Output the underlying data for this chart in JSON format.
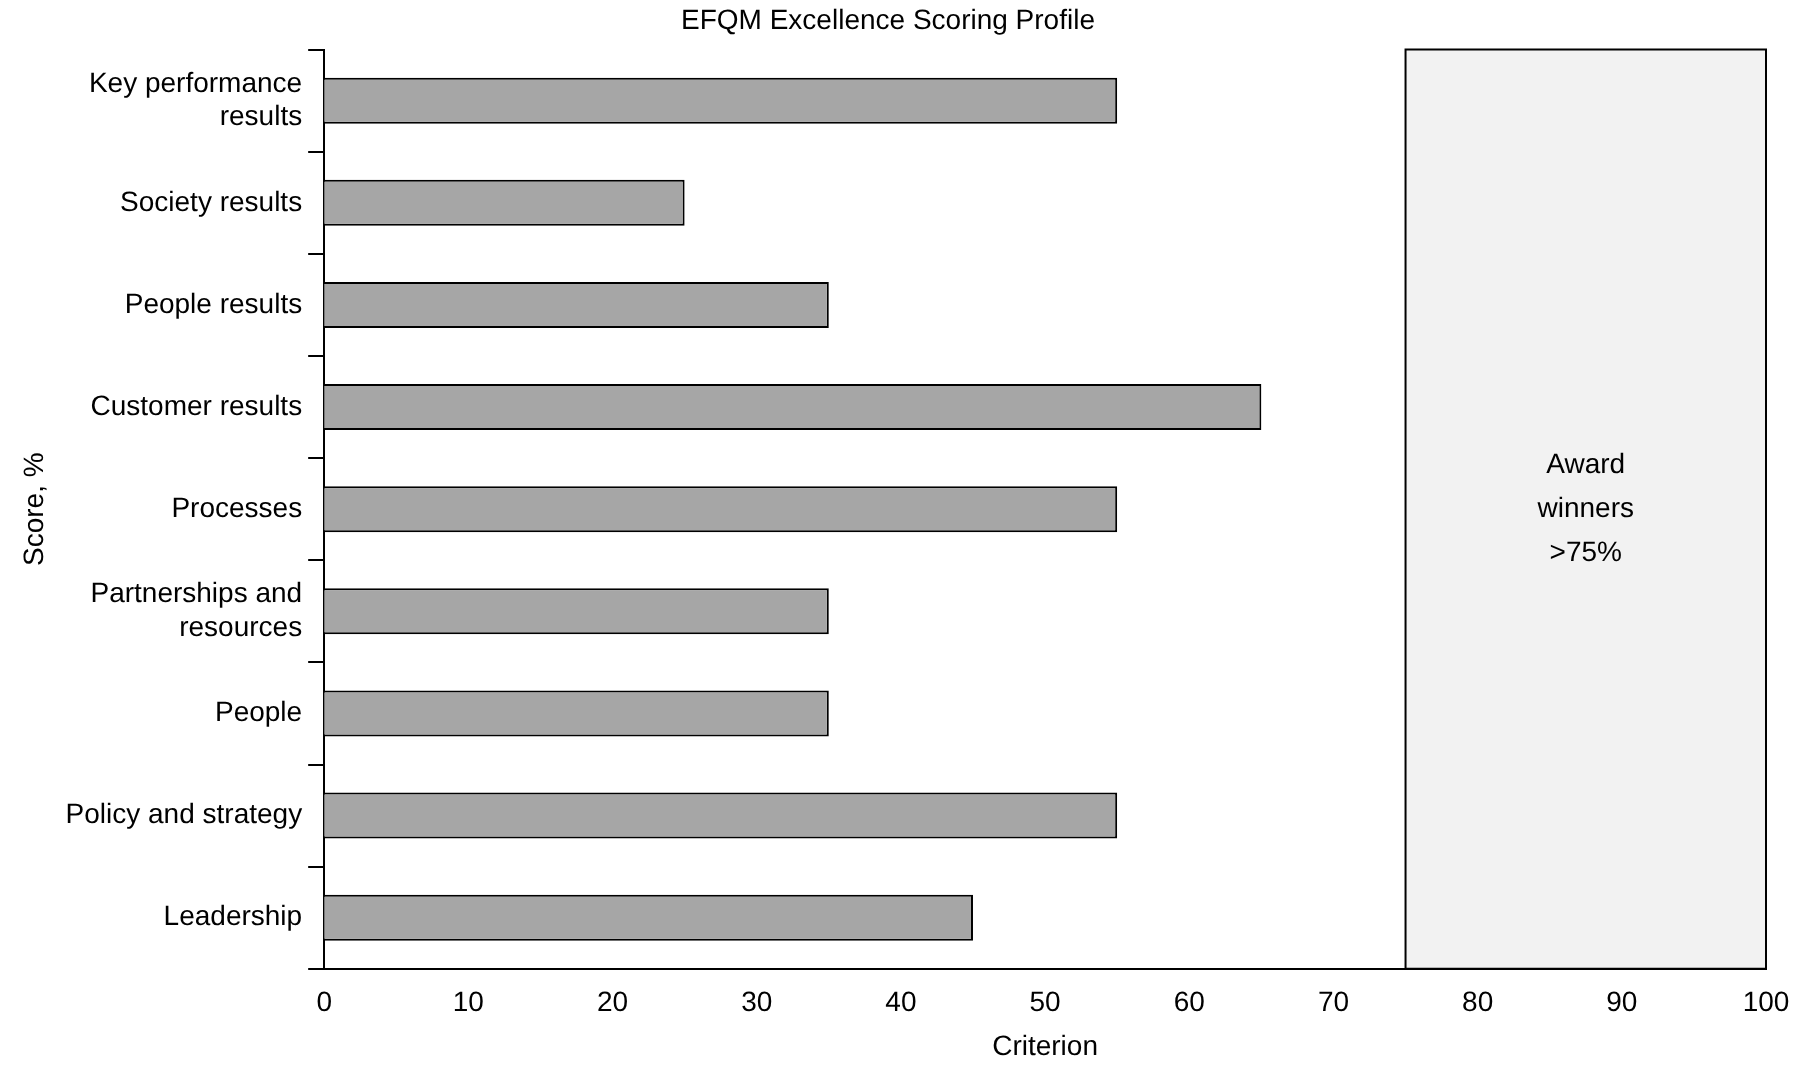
{
  "chart_data": {
    "type": "bar",
    "orientation": "horizontal",
    "title": "EFQM Excellence Scoring Profile",
    "xlabel": "Criterion",
    "ylabel": "Score, %",
    "categories": [
      "Key performance results",
      "Society results",
      "People results",
      "Customer results",
      "Processes",
      "Partnerships and resources",
      "People",
      "Policy and strategy",
      "Leadership"
    ],
    "values": [
      55,
      25,
      35,
      65,
      55,
      35,
      35,
      55,
      45
    ],
    "color": "#a6a6a6",
    "xlim": [
      0,
      100
    ],
    "xticks": [
      0,
      10,
      20,
      30,
      40,
      50,
      60,
      70,
      80,
      90,
      100
    ],
    "bands": [
      {
        "axis": "x",
        "from": 75,
        "to": 100,
        "label": "Award winners >75%",
        "color": "#f2f2f2"
      }
    ],
    "grid": false,
    "legend": false
  }
}
